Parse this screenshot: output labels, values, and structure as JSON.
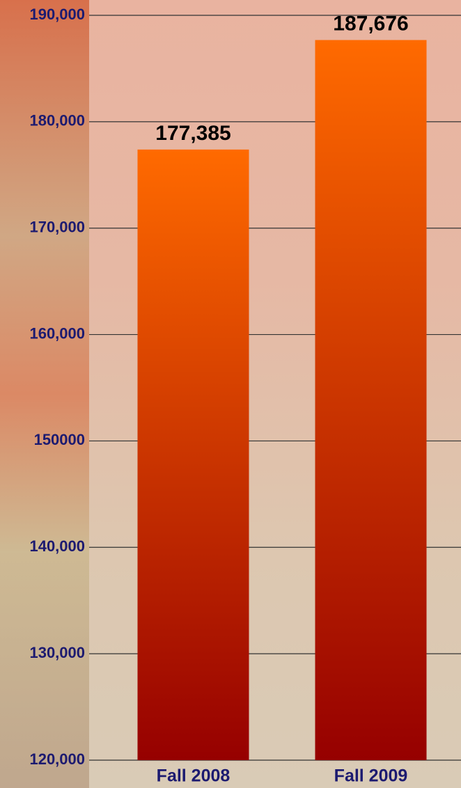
{
  "chart_data": {
    "type": "bar",
    "categories": [
      "Fall 2008",
      "Fall 2009"
    ],
    "values": [
      177385,
      187676
    ],
    "value_labels": [
      "177,385",
      "187,676"
    ],
    "ylim": [
      120000,
      190000
    ],
    "yticks": [
      {
        "value": 120000,
        "label": "120,000"
      },
      {
        "value": 130000,
        "label": "130,000"
      },
      {
        "value": 140000,
        "label": "140,000"
      },
      150000,
      {
        "value": 160000,
        "label": "160,000"
      },
      {
        "value": 170000,
        "label": "170,000"
      },
      {
        "value": 180000,
        "label": "180,000"
      },
      {
        "value": 190000,
        "label": "190,000"
      }
    ],
    "grid": true,
    "color_top": "#ff6a00",
    "color_bottom": "#960000"
  }
}
